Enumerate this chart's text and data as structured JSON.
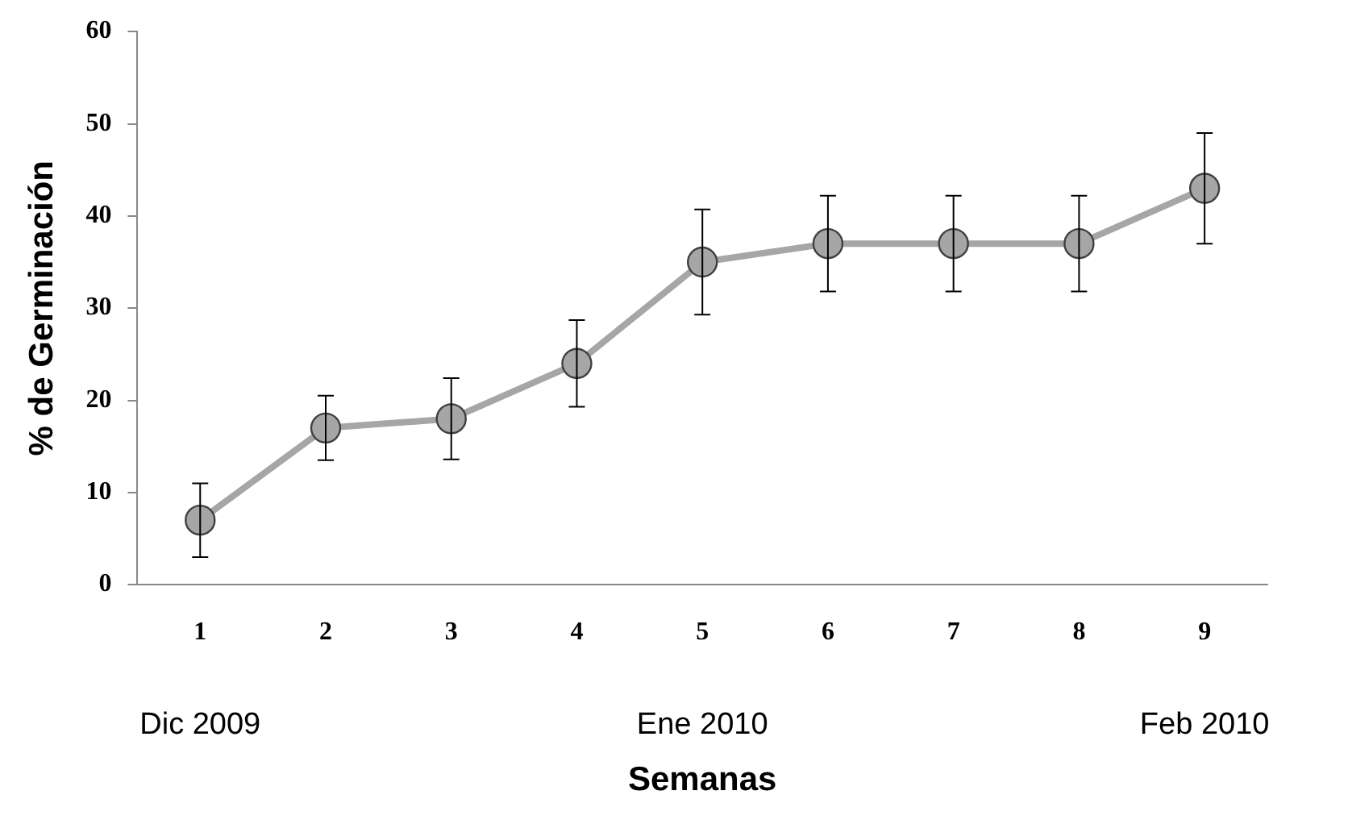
{
  "chart_data": {
    "type": "line",
    "xlabel": "Semanas",
    "ylabel": "% de Germinación",
    "categories": [
      "1",
      "2",
      "3",
      "4",
      "5",
      "6",
      "7",
      "8",
      "9"
    ],
    "values": [
      7,
      17,
      18,
      24,
      35,
      37,
      37,
      37,
      43
    ],
    "errors": [
      4,
      3.5,
      4.4,
      4.7,
      5.7,
      5.2,
      5.2,
      5.2,
      6
    ],
    "color": "#a6a6a6",
    "marker": "circle",
    "line_style": "solid",
    "grid": false,
    "legend": false,
    "ylim": [
      0,
      60
    ],
    "yticks": [
      0,
      10,
      20,
      30,
      40,
      50,
      60
    ],
    "annotations": [
      "Dic 2009",
      "Ene 2010",
      "Feb 2010"
    ]
  }
}
